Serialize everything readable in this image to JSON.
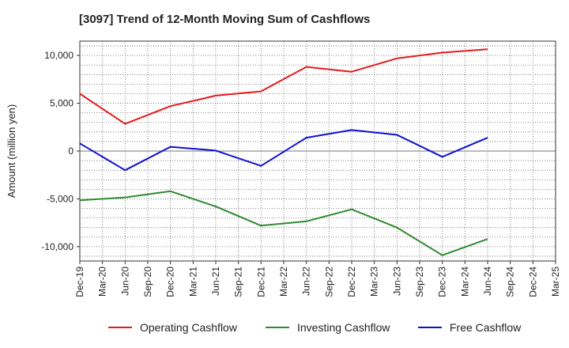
{
  "chart_data": {
    "type": "line",
    "title": "[3097]  Trend of 12-Month Moving Sum of Cashflows",
    "ylabel": "Amount (million yen)",
    "xlabel": "",
    "ylim": [
      -11500,
      11500
    ],
    "y_ticks": [
      -10000,
      -5000,
      0,
      5000,
      10000
    ],
    "y_tick_labels": [
      "-10,000",
      "-5,000",
      "0",
      "5,000",
      "10,000"
    ],
    "categories": [
      "Dec-19",
      "Mar-20",
      "Jun-20",
      "Sep-20",
      "Dec-20",
      "Mar-21",
      "Jun-21",
      "Sep-21",
      "Dec-21",
      "Mar-22",
      "Jun-22",
      "Sep-22",
      "Dec-22",
      "Mar-23",
      "Jun-23",
      "Sep-23",
      "Dec-23",
      "Mar-24",
      "Jun-24",
      "Sep-24",
      "Dec-24",
      "Mar-25"
    ],
    "series": [
      {
        "name": "Operating Cashflow",
        "color": "#e41a1c",
        "values": [
          6000,
          null,
          2850,
          null,
          4700,
          null,
          5800,
          null,
          6250,
          null,
          8800,
          null,
          8300,
          null,
          9700,
          null,
          10300,
          null,
          10650,
          null,
          null,
          null
        ]
      },
      {
        "name": "Investing Cashflow",
        "color": "#2e8b2e",
        "values": [
          -5150,
          null,
          -4850,
          null,
          -4200,
          null,
          -5800,
          null,
          -7800,
          null,
          -7350,
          null,
          -6100,
          null,
          -8000,
          null,
          -10900,
          null,
          -9200,
          null,
          null,
          null
        ]
      },
      {
        "name": "Free Cashflow",
        "color": "#1010d0",
        "values": [
          800,
          null,
          -2000,
          null,
          450,
          null,
          50,
          null,
          -1550,
          null,
          1400,
          null,
          2200,
          null,
          1700,
          null,
          -600,
          null,
          1400,
          null,
          null,
          null
        ]
      }
    ],
    "grid": true,
    "grid_style": "dotted",
    "legend_position": "bottom"
  }
}
